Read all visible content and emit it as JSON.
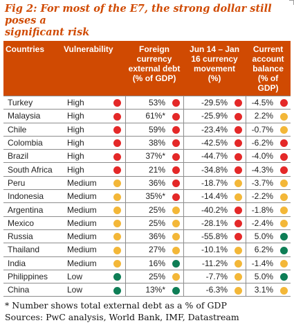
{
  "title_line1": "Fig 2: For most of the E7, the strong dollar still poses a",
  "title_line2": "significant risk",
  "headers": {
    "country": "Countries",
    "vulnerability": "Vulnerability",
    "debt": [
      "Foreign",
      "currency",
      "external debt",
      "(% of GDP)"
    ],
    "currency": [
      "Jun 14 – Jan",
      "16 currency",
      "movement",
      "(%)"
    ],
    "balance": [
      "Current",
      "account",
      "balance",
      "(% of GDP)"
    ]
  },
  "colors": {
    "red": "#e42828",
    "orange": "#f3b738",
    "green": "#0e7e56",
    "header": "#d04a02"
  },
  "rows": [
    {
      "country": "Turkey",
      "vul": "High",
      "vul_c": "red",
      "debt": "53%",
      "debt_c": "red",
      "cur": "-29.5%",
      "cur_c": "red",
      "bal": "-4.5%",
      "bal_c": "red"
    },
    {
      "country": "Malaysia",
      "vul": "High",
      "vul_c": "red",
      "debt": "61%*",
      "debt_c": "red",
      "cur": "-25.9%",
      "cur_c": "red",
      "bal": "2.2%",
      "bal_c": "orange"
    },
    {
      "country": "Chile",
      "vul": "High",
      "vul_c": "red",
      "debt": "59%",
      "debt_c": "red",
      "cur": "-23.4%",
      "cur_c": "red",
      "bal": "-0.7%",
      "bal_c": "orange"
    },
    {
      "country": "Colombia",
      "vul": "High",
      "vul_c": "red",
      "debt": "38%",
      "debt_c": "red",
      "cur": "-42.5%",
      "cur_c": "red",
      "bal": "-6.2%",
      "bal_c": "red"
    },
    {
      "country": "Brazil",
      "vul": "High",
      "vul_c": "red",
      "debt": "37%*",
      "debt_c": "red",
      "cur": "-44.7%",
      "cur_c": "red",
      "bal": "-4.0%",
      "bal_c": "red"
    },
    {
      "country": "South Africa",
      "vul": "High",
      "vul_c": "red",
      "debt": "21%",
      "debt_c": "red",
      "cur": "-34.8%",
      "cur_c": "red",
      "bal": "-4.3%",
      "bal_c": "red"
    },
    {
      "country": "Peru",
      "vul": "Medium",
      "vul_c": "orange",
      "debt": "36%",
      "debt_c": "red",
      "cur": "-18.7%",
      "cur_c": "orange",
      "bal": "-3.7%",
      "bal_c": "orange"
    },
    {
      "country": "Indonesia",
      "vul": "Medium",
      "vul_c": "orange",
      "debt": "35%*",
      "debt_c": "red",
      "cur": "-14.4%",
      "cur_c": "orange",
      "bal": "-2.2%",
      "bal_c": "orange"
    },
    {
      "country": "Argentina",
      "vul": "Medium",
      "vul_c": "orange",
      "debt": "25%",
      "debt_c": "orange",
      "cur": "-40.2%",
      "cur_c": "red",
      "bal": "-1.8%",
      "bal_c": "orange"
    },
    {
      "country": "Mexico",
      "vul": "Medium",
      "vul_c": "orange",
      "debt": "25%",
      "debt_c": "orange",
      "cur": "-28.1%",
      "cur_c": "red",
      "bal": "-2.4%",
      "bal_c": "orange"
    },
    {
      "country": "Russia",
      "vul": "Medium",
      "vul_c": "orange",
      "debt": "36%",
      "debt_c": "orange",
      "cur": "-55.8%",
      "cur_c": "red",
      "bal": "5.0%",
      "bal_c": "green"
    },
    {
      "country": "Thailand",
      "vul": "Medium",
      "vul_c": "orange",
      "debt": "27%",
      "debt_c": "orange",
      "cur": "-10.1%",
      "cur_c": "orange",
      "bal": "6.2%",
      "bal_c": "green"
    },
    {
      "country": "India",
      "vul": "Medium",
      "vul_c": "orange",
      "debt": "16%",
      "debt_c": "green",
      "cur": "-11.2%",
      "cur_c": "orange",
      "bal": "-1.4%",
      "bal_c": "orange"
    },
    {
      "country": "Philippines",
      "vul": "Low",
      "vul_c": "green",
      "debt": "25%",
      "debt_c": "orange",
      "cur": "-7.7%",
      "cur_c": "orange",
      "bal": "5.0%",
      "bal_c": "green"
    },
    {
      "country": "China",
      "vul": "Low",
      "vul_c": "green",
      "debt": "13%*",
      "debt_c": "green",
      "cur": "-6.3%",
      "cur_c": "orange",
      "bal": "3.1%",
      "bal_c": "orange"
    }
  ],
  "footnote": "* Number shows total external debt as a % of GDP",
  "sources": "Sources: PwC analysis, World Bank, IMF, Datastream"
}
